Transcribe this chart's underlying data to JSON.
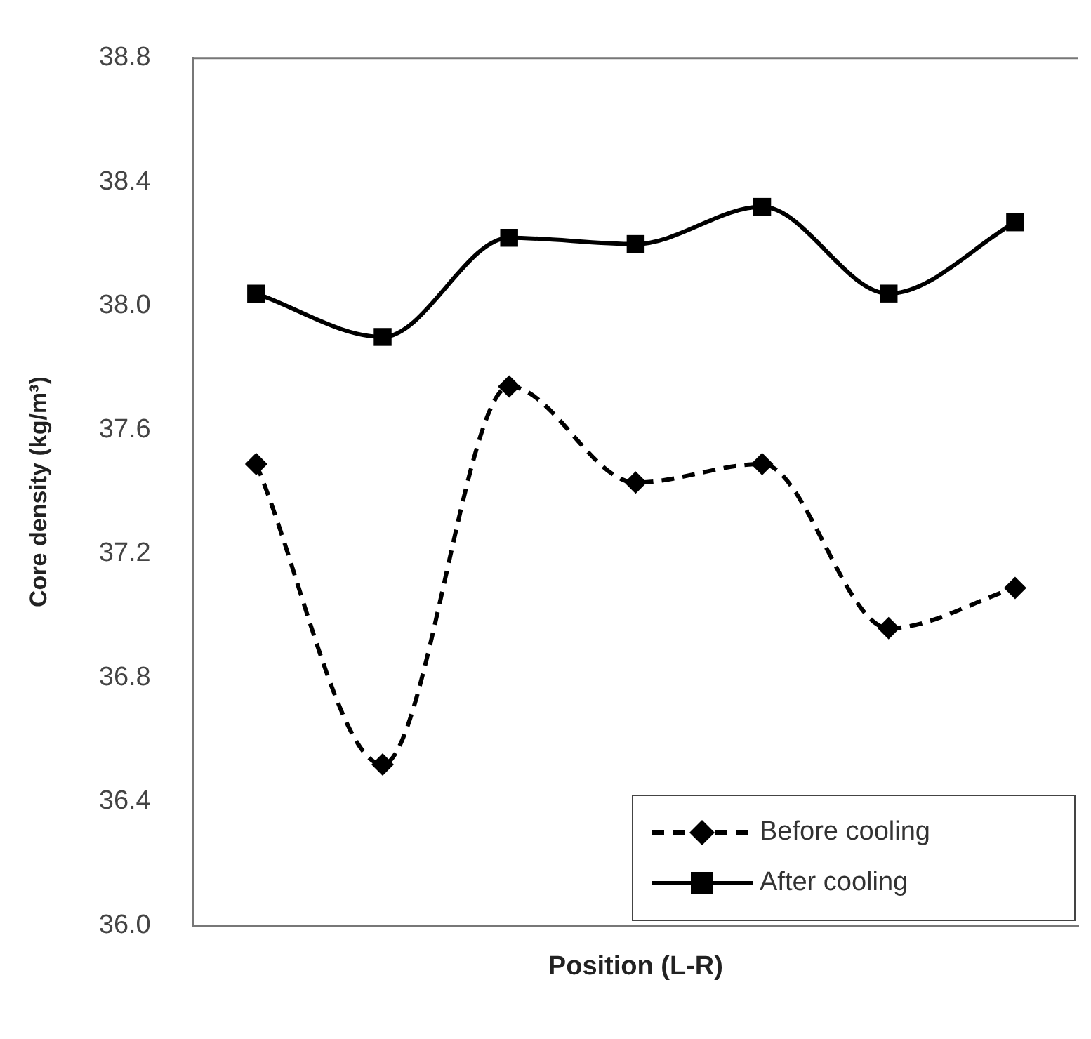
{
  "chart_data": {
    "type": "line",
    "xlabel": "Position (L-R)",
    "ylabel": "Core density (kg/m³)",
    "categories": [
      null,
      null,
      null,
      null,
      null,
      null,
      null
    ],
    "series": [
      {
        "name": "Before cooling",
        "color": "#000000",
        "marker": "diamond",
        "line_style": "dashed",
        "values": [
          37.49,
          36.52,
          37.74,
          37.43,
          37.49,
          36.96,
          37.09
        ]
      },
      {
        "name": "After cooling",
        "color": "#000000",
        "marker": "square",
        "line_style": "solid",
        "values": [
          38.04,
          37.9,
          38.22,
          38.2,
          38.32,
          38.04,
          38.27
        ]
      }
    ],
    "ylim": [
      36.0,
      38.8
    ],
    "yticks": [
      {
        "value": 36.0,
        "label": "36.0"
      },
      {
        "value": 36.4,
        "label": "36.4"
      },
      {
        "value": 36.8,
        "label": "36.8"
      },
      {
        "value": 37.2,
        "label": "37.2"
      },
      {
        "value": 37.6,
        "label": "37.6"
      },
      {
        "value": 38.0,
        "label": "38.0"
      },
      {
        "value": 38.4,
        "label": "38.4"
      },
      {
        "value": 38.8,
        "label": "38.8"
      }
    ],
    "grid": false,
    "legend": "bottom right",
    "tick_labels": "y"
  }
}
